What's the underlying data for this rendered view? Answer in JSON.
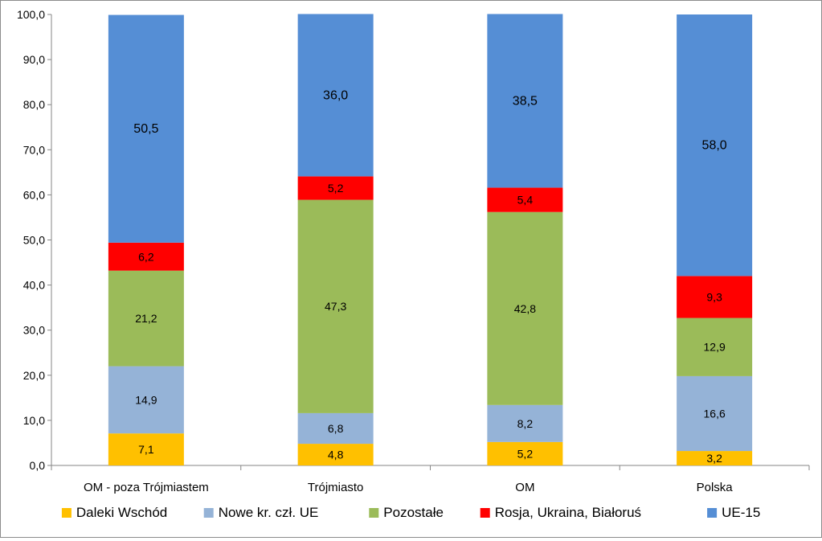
{
  "chart_data": {
    "type": "bar",
    "stacked": true,
    "title": "",
    "xlabel": "",
    "ylabel": "",
    "ylim": [
      0,
      100
    ],
    "yticks": [
      "0,0",
      "10,0",
      "20,0",
      "30,0",
      "40,0",
      "50,0",
      "60,0",
      "70,0",
      "80,0",
      "90,0",
      "100,0"
    ],
    "grid": false,
    "legend_position": "bottom",
    "categories": [
      "OM - poza Trójmiastem",
      "Trójmiasto",
      "OM",
      "Polska"
    ],
    "series": [
      {
        "name": "Daleki Wschód",
        "color": "#ffc000",
        "values": [
          7.1,
          4.8,
          5.2,
          3.2
        ],
        "labels": [
          "7,1",
          "4,8",
          "5,2",
          "3,2"
        ]
      },
      {
        "name": "Nowe kr. czł. UE",
        "color": "#95b3d7",
        "values": [
          14.9,
          6.8,
          8.2,
          16.6
        ],
        "labels": [
          "14,9",
          "6,8",
          "8,2",
          "16,6"
        ]
      },
      {
        "name": "Pozostałe",
        "color": "#9bbb59",
        "values": [
          21.2,
          47.3,
          42.8,
          12.9
        ],
        "labels": [
          "21,2",
          "47,3",
          "42,8",
          "12,9"
        ]
      },
      {
        "name": "Rosja, Ukraina, Białoruś",
        "color": "#ff0000",
        "values": [
          6.2,
          5.2,
          5.4,
          9.3
        ],
        "labels": [
          "6,2",
          "5,2",
          "5,4",
          "9,3"
        ]
      },
      {
        "name": "UE-15",
        "color": "#558ed5",
        "values": [
          50.5,
          36.0,
          38.5,
          58.0
        ],
        "labels": [
          "50,5",
          "36,0",
          "38,5",
          "58,0"
        ]
      }
    ]
  }
}
